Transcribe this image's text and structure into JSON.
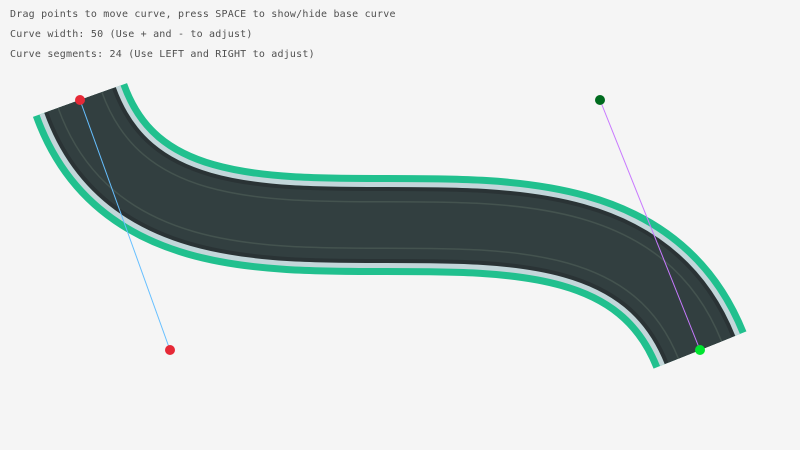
{
  "instructions": {
    "line1": "Drag points to move curve, press SPACE to show/hide base curve",
    "line2": "Curve width: 50 (Use + and - to adjust)",
    "line3": "Curve segments: 24 (Use LEFT and RIGHT to adjust)"
  },
  "curve": {
    "width": 50,
    "segments": 24,
    "colors": {
      "grass_edge": "#21c08e",
      "curb": "#c3d6da",
      "asphalt_border": "#2a3335",
      "asphalt": "#323f40",
      "lane_line": "#44534f",
      "start_point": "#e62937",
      "end_point": "#00e430",
      "start_tangent_point": "#e62937",
      "end_tangent_point": "#006b1e",
      "start_tangent_line": "#66bfff",
      "end_tangent_line": "#c87aff"
    }
  }
}
